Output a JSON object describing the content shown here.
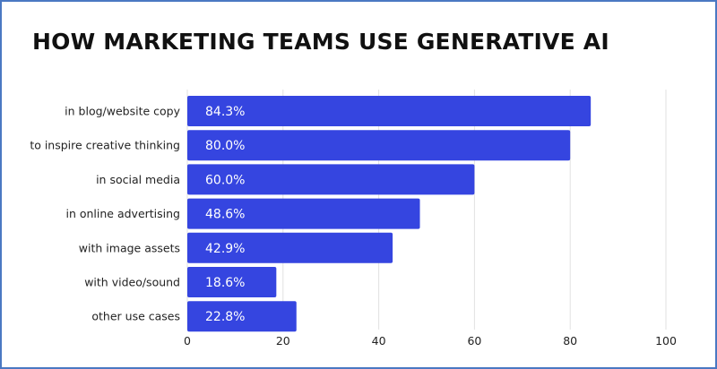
{
  "chart_data": {
    "type": "bar",
    "orientation": "horizontal",
    "title": "HOW MARKETING TEAMS USE GENERATIVE AI",
    "categories": [
      "in blog/website copy",
      "to inspire creative thinking",
      "in social media",
      "in online advertising",
      "with image assets",
      "with video/sound",
      "other use cases"
    ],
    "values": [
      84.3,
      80.0,
      60.0,
      48.6,
      42.9,
      18.6,
      22.8
    ],
    "value_labels": [
      "84.3%",
      "80.0%",
      "60.0%",
      "48.6%",
      "42.9%",
      "18.6%",
      "22.8%"
    ],
    "xlim": [
      0,
      100
    ],
    "xticks": [
      0,
      20,
      40,
      60,
      80,
      100
    ],
    "xlabel": "",
    "ylabel": "",
    "grid": true,
    "bar_color": "#3545e0",
    "grid_color": "#e2e2e2"
  }
}
